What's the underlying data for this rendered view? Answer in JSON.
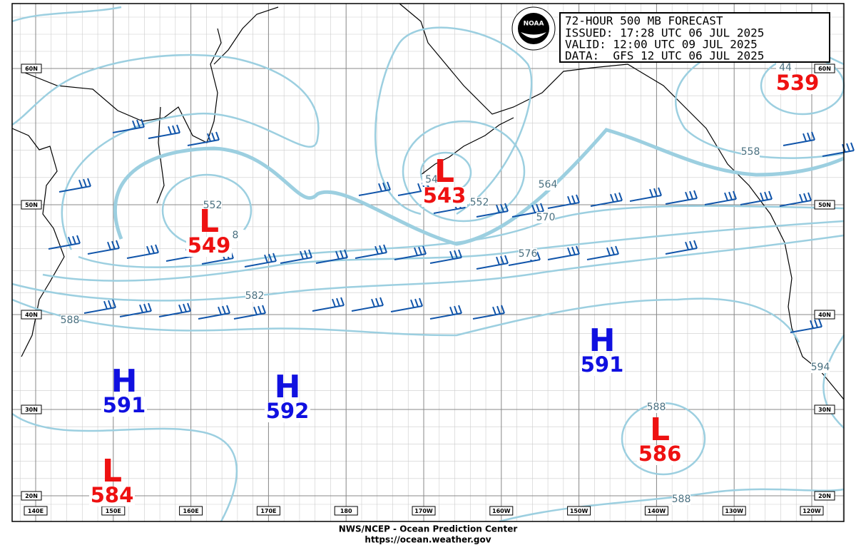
{
  "header": {
    "lines": [
      "72-HOUR 500 MB FORECAST",
      "ISSUED: 17:28 UTC 06 JUL 2025",
      "VALID:  12:00 UTC 09 JUL 2025",
      "DATA:  GFS 12 UTC 06 JUL 2025"
    ],
    "logo": "NOAA"
  },
  "centers": [
    {
      "letter": "L",
      "value": "549"
    },
    {
      "letter": "L",
      "value": "543"
    },
    {
      "letter": "",
      "value": "539"
    },
    {
      "letter": "H",
      "value": "591"
    },
    {
      "letter": "H",
      "value": "591"
    },
    {
      "letter": "H",
      "value": "592"
    },
    {
      "letter": "L",
      "value": "586"
    },
    {
      "letter": "L",
      "value": "584"
    }
  ],
  "contour_labels": [
    "552",
    "552",
    "564",
    "570",
    "576",
    "582",
    "588",
    "558",
    "588",
    "588",
    "594",
    "54",
    "8",
    "44"
  ],
  "latitude_labels": [
    "60N",
    "50N",
    "40N",
    "30N",
    "20N"
  ],
  "longitude_labels": [
    "140E",
    "150E",
    "160E",
    "170E",
    "180",
    "170W",
    "160W",
    "150W",
    "140W",
    "130W",
    "120W"
  ],
  "footer": [
    "NWS/NCEP - Ocean Prediction Center",
    "https://ocean.weather.gov"
  ]
}
